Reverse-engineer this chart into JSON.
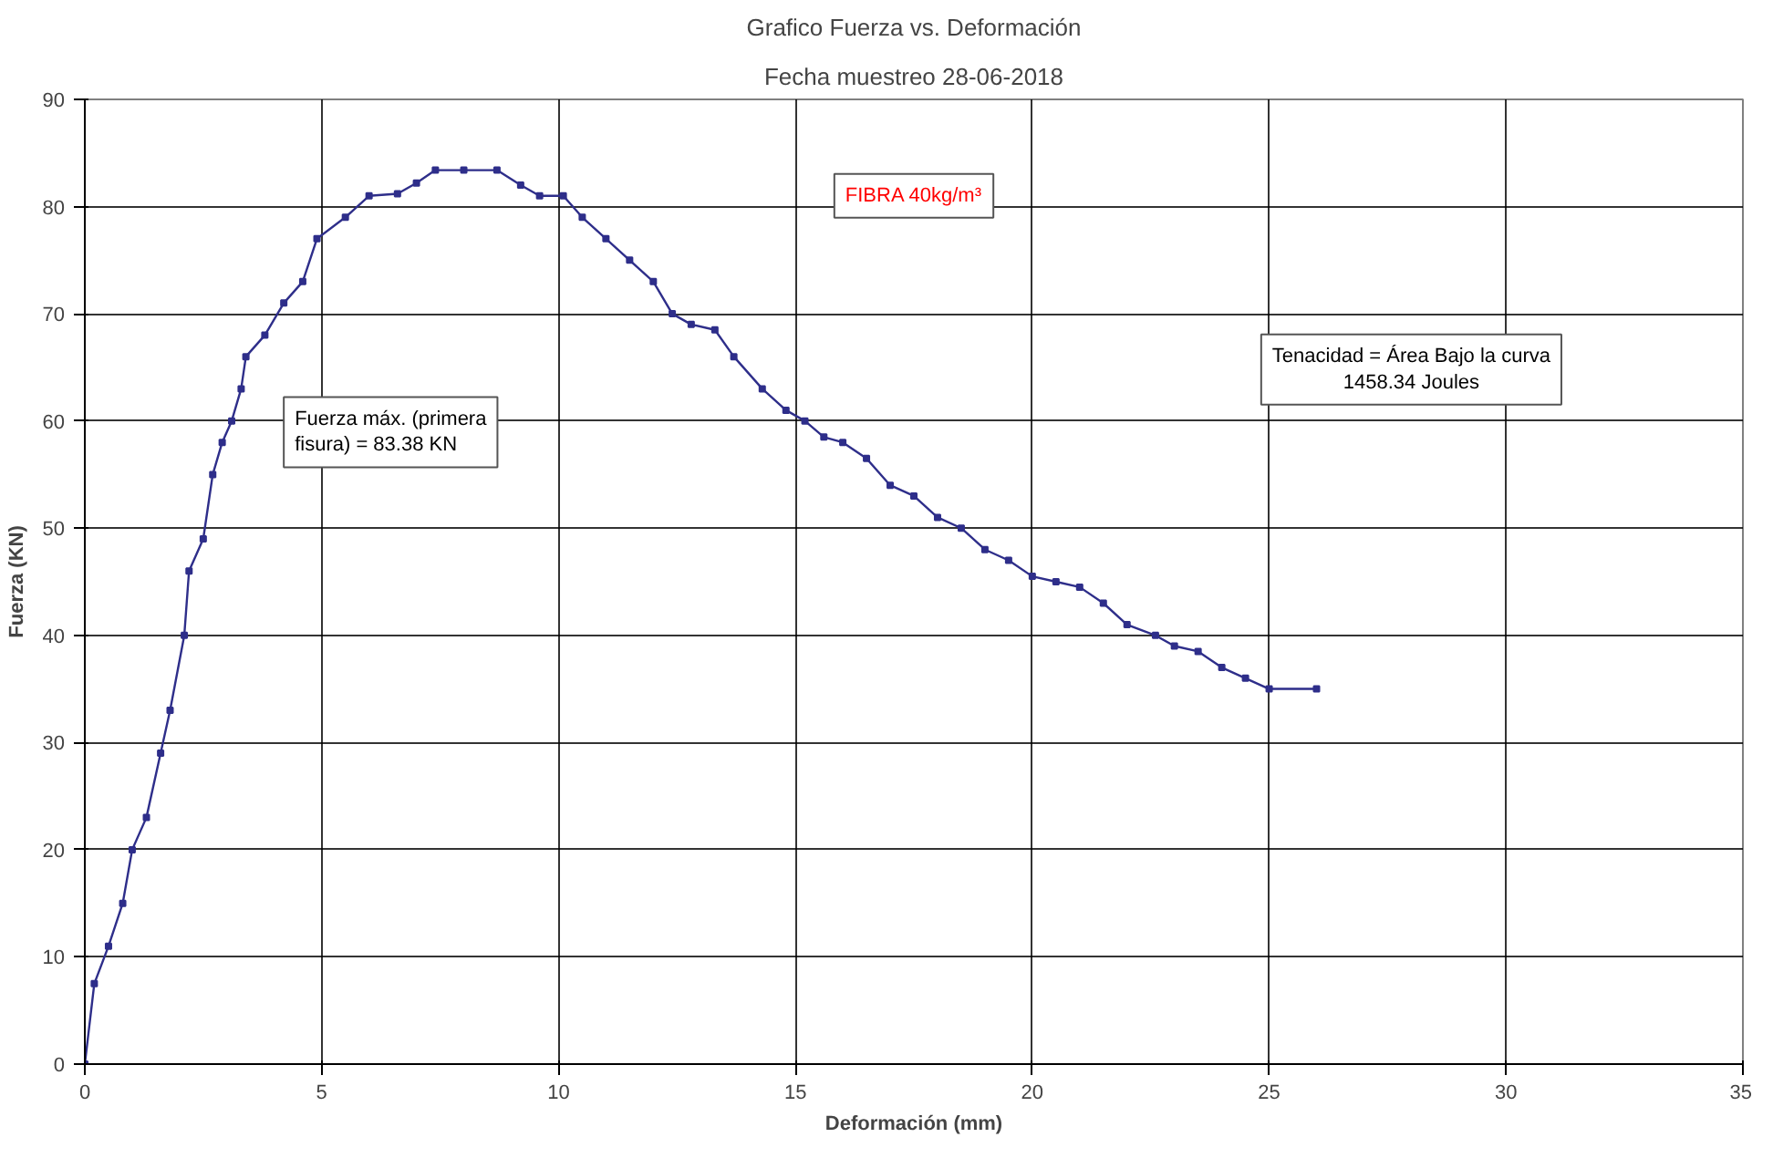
{
  "chart_data": {
    "type": "line",
    "title": "Grafico Fuerza vs. Deformación",
    "subtitle": "Fecha muestreo 28-06-2018",
    "xlabel": "Deformación (mm)",
    "ylabel": "Fuerza (KN)",
    "x": [
      0,
      0.2,
      0.5,
      0.8,
      1,
      1.3,
      1.6,
      1.8,
      2.1,
      2.2,
      2.5,
      2.7,
      2.9,
      3.1,
      3.3,
      3.4,
      3.8,
      4.2,
      4.6,
      4.9,
      5.5,
      6,
      6.6,
      7,
      7.4,
      8,
      8.7,
      9.2,
      9.6,
      10.1,
      10.5,
      11,
      11.5,
      12,
      12.4,
      12.8,
      13.3,
      13.7,
      14.3,
      14.8,
      15.2,
      15.6,
      16,
      16.5,
      17,
      17.5,
      18,
      18.5,
      19,
      19.5,
      20,
      20.5,
      21,
      21.5,
      22,
      22.6,
      23,
      23.5,
      24,
      24.5,
      25,
      26
    ],
    "series": [
      {
        "color": "#2e2e8a",
        "values": [
          0,
          7.5,
          11,
          15,
          20,
          23,
          29,
          33,
          40,
          46,
          49,
          55,
          58,
          60,
          63,
          66,
          68,
          71,
          73,
          77,
          79,
          81,
          81.2,
          82.2,
          83.4,
          83.4,
          83.4,
          82,
          81,
          81,
          79,
          77,
          75,
          73,
          70,
          69,
          68.5,
          66,
          63,
          61,
          60,
          58.5,
          58,
          56.5,
          54,
          53,
          51,
          50,
          48,
          47,
          45.5,
          45,
          44.5,
          43,
          41,
          40,
          39,
          38.5,
          37,
          36,
          35,
          35
        ]
      }
    ],
    "xlim": [
      0,
      35
    ],
    "ylim": [
      0,
      90
    ],
    "xticks": [
      0,
      5,
      10,
      15,
      20,
      25,
      30,
      35
    ],
    "yticks": [
      0,
      10,
      20,
      30,
      40,
      50,
      60,
      70,
      80,
      90
    ],
    "grid": true,
    "marker": "square",
    "line_style": "solid",
    "annotations": [
      "FIBRA 40kg/m³",
      "Fuerza máx. (primera\nfisura) = 83.38 KN",
      "Tenacidad = Área Bajo la curva\n1458.34 Joules"
    ]
  }
}
